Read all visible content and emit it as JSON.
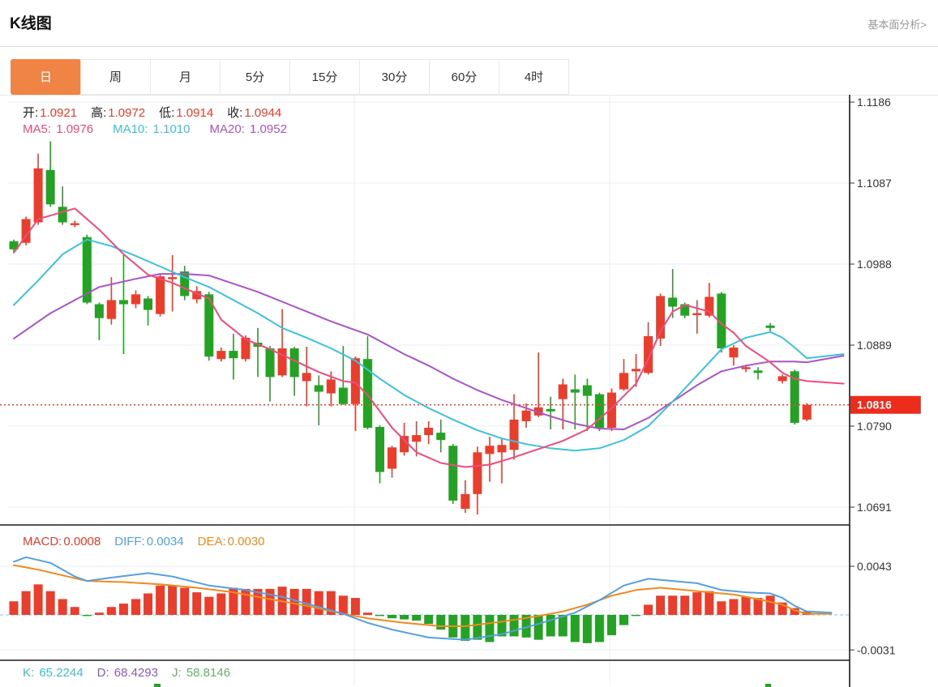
{
  "header": {
    "title": "K线图",
    "link_label": "基本面分析>"
  },
  "tabs": {
    "items": [
      {
        "name": "tab-day",
        "label": "日",
        "active": true
      },
      {
        "name": "tab-week",
        "label": "周",
        "active": false
      },
      {
        "name": "tab-month",
        "label": "月",
        "active": false
      },
      {
        "name": "tab-5min",
        "label": "5分",
        "active": false
      },
      {
        "name": "tab-15min",
        "label": "15分",
        "active": false
      },
      {
        "name": "tab-30min",
        "label": "30分",
        "active": false
      },
      {
        "name": "tab-60min",
        "label": "60分",
        "active": false
      },
      {
        "name": "tab-4hour",
        "label": "4时",
        "active": false
      }
    ]
  },
  "colors": {
    "up": "#ea3d2c",
    "down": "#23a223",
    "ma5": "#f04a7e",
    "ma10": "#3bc2dd",
    "ma20": "#ab53c5",
    "diff": "#55a0e0",
    "dea": "#f08a1d",
    "price_line": "#f04438",
    "price_tag_bg": "#ee2c1c",
    "grid": "#e9ecf4",
    "axis": "#1b1b1b",
    "zero_dash": "#a9cde9",
    "tab_active": "#ef8444",
    "label_dark": "#222",
    "axis_text": "#333"
  },
  "legend_ohlc": [
    {
      "label": "开:",
      "value": "1.0921",
      "label_color": "#222",
      "value_color": "#ea3d2c"
    },
    {
      "label": "高:",
      "value": "1.0972",
      "label_color": "#222",
      "value_color": "#ea3d2c"
    },
    {
      "label": "低:",
      "value": "1.0914",
      "label_color": "#222",
      "value_color": "#ea3d2c"
    },
    {
      "label": "收:",
      "value": "1.0944",
      "label_color": "#222",
      "value_color": "#ea3d2c"
    }
  ],
  "legend_ma": [
    {
      "label": "MA5: ",
      "value": "1.0976",
      "label_color": "#f04a7e",
      "value_color": "#f04a7e"
    },
    {
      "label": "MA10: ",
      "value": "1.1010",
      "label_color": "#3bc2dd",
      "value_color": "#3bc2dd"
    },
    {
      "label": "MA20: ",
      "value": "1.0952",
      "label_color": "#ab53c5",
      "value_color": "#ab53c5"
    }
  ],
  "legend_macd": [
    {
      "label": "MACD:",
      "value": "0.0008",
      "label_color": "#ea3d2c",
      "value_color": "#ea3d2c"
    },
    {
      "label": "DIFF:",
      "value": "0.0034",
      "label_color": "#55a0e0",
      "value_color": "#55a0e0"
    },
    {
      "label": "DEA:",
      "value": "0.0030",
      "label_color": "#f08a1d",
      "value_color": "#f08a1d"
    }
  ],
  "legend_kdj": [
    {
      "label": "K: ",
      "value": "65.2244",
      "label_color": "#3ac0d0",
      "value_color": "#3ac0d0"
    },
    {
      "label": "D: ",
      "value": "68.4293",
      "label_color": "#8a5ac0",
      "value_color": "#8a5ac0"
    },
    {
      "label": "J: ",
      "value": "58.8146",
      "label_color": "#62b462",
      "value_color": "#62b462"
    }
  ],
  "price_tag": "1.0816",
  "chart_data": {
    "type": "candlestick+macd",
    "title": "K线图 (daily candles with MA5/MA10/MA20 and MACD)",
    "legend_position": "top-left",
    "grid": true,
    "price_axis": {
      "labels": [
        1.1186,
        1.1087,
        1.0988,
        1.0889,
        1.079,
        1.0691
      ],
      "current_price": 1.0816
    },
    "macd_axis": {
      "labels": [
        0.0043,
        -0.0031
      ]
    },
    "candles_ohlc": [
      [
        1.1016,
        1.1018,
        1.1003,
        1.1006
      ],
      [
        1.1014,
        1.1046,
        1.1011,
        1.1043
      ],
      [
        1.1039,
        1.1123,
        1.1036,
        1.1105
      ],
      [
        1.1103,
        1.1138,
        1.1058,
        1.1061
      ],
      [
        1.1058,
        1.1083,
        1.1036,
        1.1039
      ],
      [
        1.1036,
        1.1041,
        1.1033,
        1.1038
      ],
      [
        1.1021,
        1.1024,
        1.0939,
        1.0941
      ],
      [
        1.0939,
        1.0941,
        1.0895,
        1.0922
      ],
      [
        1.0921,
        1.0972,
        1.0914,
        1.0944
      ],
      [
        1.0944,
        1.0999,
        1.0878,
        1.0939
      ],
      [
        1.0939,
        1.0956,
        1.0934,
        1.0951
      ],
      [
        1.0946,
        1.0949,
        1.0913,
        1.0932
      ],
      [
        1.0927,
        1.0976,
        1.0924,
        1.0973
      ],
      [
        1.097,
        1.0999,
        1.093,
        1.0972
      ],
      [
        1.0979,
        1.0986,
        1.0944,
        1.0949
      ],
      [
        1.0945,
        1.0961,
        1.094,
        1.0955
      ],
      [
        1.0951,
        1.0954,
        1.087,
        1.0875
      ],
      [
        1.0872,
        1.0886,
        1.0869,
        1.0882
      ],
      [
        1.0882,
        1.0903,
        1.0847,
        1.0873
      ],
      [
        1.0872,
        1.0901,
        1.0869,
        1.0898
      ],
      [
        1.0892,
        1.091,
        1.085,
        1.0887
      ],
      [
        1.0885,
        1.0888,
        1.082,
        1.085
      ],
      [
        1.0852,
        1.0933,
        1.085,
        1.0885
      ],
      [
        1.0885,
        1.0887,
        1.0827,
        1.085
      ],
      [
        1.0845,
        1.0887,
        1.0814,
        1.0855
      ],
      [
        1.084,
        1.0852,
        1.0791,
        1.0832
      ],
      [
        1.083,
        1.0857,
        1.0814,
        1.0847
      ],
      [
        1.0837,
        1.0888,
        1.0816,
        1.0817
      ],
      [
        1.0817,
        1.0875,
        1.0784,
        1.0873
      ],
      [
        1.0872,
        1.09,
        1.0786,
        1.0788
      ],
      [
        1.0789,
        1.0791,
        1.072,
        1.0734
      ],
      [
        1.0738,
        1.0766,
        1.0727,
        1.0764
      ],
      [
        1.0758,
        1.0794,
        1.0754,
        1.0778
      ],
      [
        1.0771,
        1.0796,
        1.0753,
        1.0779
      ],
      [
        1.0779,
        1.0796,
        1.0768,
        1.0788
      ],
      [
        1.0782,
        1.0798,
        1.0758,
        1.0773
      ],
      [
        1.0766,
        1.0768,
        1.0695,
        1.0699
      ],
      [
        1.0689,
        1.0724,
        1.0684,
        1.0707
      ],
      [
        1.0707,
        1.0765,
        1.0682,
        1.0758
      ],
      [
        1.0756,
        1.0777,
        1.0722,
        1.0766
      ],
      [
        1.0758,
        1.0776,
        1.072,
        1.0767
      ],
      [
        1.0761,
        1.0829,
        1.0749,
        1.0798
      ],
      [
        1.0796,
        1.0818,
        1.0788,
        1.0809
      ],
      [
        1.0803,
        1.088,
        1.0801,
        1.0813
      ],
      [
        1.0811,
        1.0826,
        1.0786,
        1.0808
      ],
      [
        1.0823,
        1.0848,
        1.0786,
        1.0841
      ],
      [
        1.0835,
        1.0853,
        1.0786,
        1.0831
      ],
      [
        1.084,
        1.0848,
        1.0784,
        1.0827
      ],
      [
        1.0829,
        1.0831,
        1.0784,
        1.0788
      ],
      [
        1.0788,
        1.0836,
        1.0784,
        1.0831
      ],
      [
        1.0835,
        1.0872,
        1.0833,
        1.0855
      ],
      [
        1.0857,
        1.0878,
        1.0838,
        1.086
      ],
      [
        1.0855,
        1.0917,
        1.0853,
        1.09
      ],
      [
        1.0897,
        1.0952,
        1.0888,
        1.0949
      ],
      [
        1.0947,
        1.0982,
        1.0922,
        1.0936
      ],
      [
        1.0939,
        1.0941,
        1.0922,
        1.0925
      ],
      [
        1.0926,
        1.0944,
        1.0903,
        1.0928
      ],
      [
        1.0925,
        1.0965,
        1.0923,
        1.0948
      ],
      [
        1.0952,
        1.0954,
        1.088,
        1.0885
      ],
      [
        1.0874,
        1.0889,
        1.0864,
        1.0886
      ],
      [
        1.086,
        1.0865,
        1.0856,
        1.0862
      ],
      [
        1.0858,
        1.0862,
        1.0847,
        1.0855
      ],
      [
        1.0913,
        1.0916,
        1.0906,
        1.091
      ],
      [
        1.0845,
        1.0853,
        1.0842,
        1.0851
      ],
      [
        1.0857,
        1.0859,
        1.0792,
        1.0794
      ],
      [
        1.0798,
        1.0818,
        1.0796,
        1.0816
      ]
    ],
    "ma5_points": [
      [
        0,
        1.1002
      ],
      [
        2,
        1.1043
      ],
      [
        5,
        1.1056
      ],
      [
        7,
        1.103
      ],
      [
        9,
        1.1
      ],
      [
        11,
        1.0975
      ],
      [
        13,
        1.0965
      ],
      [
        15,
        1.0952
      ],
      [
        16,
        1.0946
      ],
      [
        17,
        1.092
      ],
      [
        19,
        1.0896
      ],
      [
        21,
        1.0884
      ],
      [
        23,
        1.087
      ],
      [
        25,
        1.0856
      ],
      [
        27,
        1.0845
      ],
      [
        28,
        1.0843
      ],
      [
        29,
        1.0828
      ],
      [
        31,
        1.0788
      ],
      [
        33,
        1.0758
      ],
      [
        35,
        1.0745
      ],
      [
        37,
        1.074
      ],
      [
        39,
        1.0743
      ],
      [
        41,
        1.0752
      ],
      [
        43,
        1.0762
      ],
      [
        45,
        1.0772
      ],
      [
        47,
        1.0786
      ],
      [
        49,
        1.0812
      ],
      [
        51,
        1.0842
      ],
      [
        52,
        1.0872
      ],
      [
        53,
        1.0906
      ],
      [
        54,
        1.093
      ],
      [
        55,
        1.0938
      ],
      [
        56,
        1.0934
      ],
      [
        57,
        1.093
      ],
      [
        58,
        1.0915
      ],
      [
        59,
        1.0904
      ],
      [
        60,
        1.0888
      ],
      [
        61,
        1.0878
      ],
      [
        62,
        1.0868
      ],
      [
        63,
        1.0855
      ],
      [
        64,
        1.0848
      ],
      [
        65,
        1.0845
      ],
      [
        68,
        1.0842
      ]
    ],
    "ma10_points": [
      [
        0,
        1.0938
      ],
      [
        2,
        1.0968
      ],
      [
        4,
        1.1
      ],
      [
        6,
        1.1018
      ],
      [
        8,
        1.101
      ],
      [
        10,
        1.0998
      ],
      [
        12,
        1.0985
      ],
      [
        14,
        1.0972
      ],
      [
        16,
        1.096
      ],
      [
        18,
        1.0944
      ],
      [
        20,
        1.0928
      ],
      [
        22,
        1.091
      ],
      [
        24,
        1.0898
      ],
      [
        26,
        1.0885
      ],
      [
        28,
        1.087
      ],
      [
        30,
        1.0848
      ],
      [
        32,
        1.0828
      ],
      [
        34,
        1.0812
      ],
      [
        36,
        1.0798
      ],
      [
        38,
        1.0785
      ],
      [
        40,
        1.0775
      ],
      [
        42,
        1.0768
      ],
      [
        44,
        1.0763
      ],
      [
        46,
        1.076
      ],
      [
        48,
        1.0763
      ],
      [
        50,
        1.0773
      ],
      [
        52,
        1.079
      ],
      [
        54,
        1.082
      ],
      [
        56,
        1.0852
      ],
      [
        58,
        1.0884
      ],
      [
        60,
        1.0898
      ],
      [
        62,
        1.0905
      ],
      [
        63,
        1.0898
      ],
      [
        64,
        1.0886
      ],
      [
        65,
        1.0873
      ],
      [
        68,
        1.0878
      ]
    ],
    "ma20_points": [
      [
        0,
        1.0897
      ],
      [
        3,
        1.0928
      ],
      [
        7,
        1.096
      ],
      [
        10,
        1.097
      ],
      [
        12,
        1.0976
      ],
      [
        14,
        1.0976
      ],
      [
        16,
        1.0974
      ],
      [
        18,
        1.0964
      ],
      [
        20,
        1.0954
      ],
      [
        23,
        1.0936
      ],
      [
        26,
        1.0918
      ],
      [
        29,
        1.0902
      ],
      [
        32,
        1.0878
      ],
      [
        34,
        1.0864
      ],
      [
        36,
        1.0848
      ],
      [
        38,
        1.0834
      ],
      [
        40,
        1.0822
      ],
      [
        42,
        1.0812
      ],
      [
        44,
        1.0802
      ],
      [
        46,
        1.0793
      ],
      [
        48,
        1.0787
      ],
      [
        50,
        1.0786
      ],
      [
        52,
        1.08
      ],
      [
        54,
        1.082
      ],
      [
        56,
        1.084
      ],
      [
        58,
        1.0857
      ],
      [
        60,
        1.0864
      ],
      [
        62,
        1.0869
      ],
      [
        64,
        1.0869
      ],
      [
        65,
        1.0868
      ],
      [
        68,
        1.0876
      ]
    ],
    "macd_hist": [
      0.0012,
      0.0021,
      0.0027,
      0.0021,
      0.0014,
      0.0007,
      -0.0001,
      0.0002,
      0.0007,
      0.001,
      0.0014,
      0.0019,
      0.0026,
      0.0026,
      0.0024,
      0.002,
      0.0016,
      0.0019,
      0.0024,
      0.0023,
      0.0023,
      0.0023,
      0.0025,
      0.0023,
      0.0023,
      0.0021,
      0.0021,
      0.0017,
      0.0015,
      0.0002,
      -0.0001,
      -0.0003,
      -0.0004,
      -0.0005,
      -0.0008,
      -0.0013,
      -0.002,
      -0.0023,
      -0.0022,
      -0.0024,
      -0.0019,
      -0.0019,
      -0.002,
      -0.0022,
      -0.0019,
      -0.0019,
      -0.0024,
      -0.0025,
      -0.0024,
      -0.0018,
      -0.0009,
      -0.0001,
      0.0009,
      0.0017,
      0.0017,
      0.0017,
      0.002,
      0.0021,
      0.0012,
      0.0014,
      0.0016,
      0.0015,
      0.0017,
      0.0011,
      0.0006,
      0.0003
    ],
    "diff_points": [
      [
        0,
        0.0047
      ],
      [
        1,
        0.0051
      ],
      [
        3,
        0.0046
      ],
      [
        5,
        0.0034
      ],
      [
        6,
        0.003
      ],
      [
        8,
        0.0033
      ],
      [
        11,
        0.0037
      ],
      [
        13,
        0.0034
      ],
      [
        16,
        0.0026
      ],
      [
        19,
        0.0022
      ],
      [
        22,
        0.0016
      ],
      [
        25,
        0.0007
      ],
      [
        27,
        0.0001
      ],
      [
        29,
        -0.0007
      ],
      [
        31,
        -0.0013
      ],
      [
        34,
        -0.002
      ],
      [
        37,
        -0.0022
      ],
      [
        40,
        -0.0017
      ],
      [
        43,
        -0.0008
      ],
      [
        46,
        0.0002
      ],
      [
        48,
        0.0013
      ],
      [
        50,
        0.0026
      ],
      [
        52,
        0.0032
      ],
      [
        54,
        0.003
      ],
      [
        56,
        0.0028
      ],
      [
        58,
        0.0022
      ],
      [
        60,
        0.002
      ],
      [
        62,
        0.0019
      ],
      [
        63,
        0.0015
      ],
      [
        64,
        0.0008
      ],
      [
        65,
        0.0003
      ],
      [
        67,
        0.0002
      ]
    ],
    "dea_points": [
      [
        0,
        0.0044
      ],
      [
        2,
        0.004
      ],
      [
        4,
        0.0035
      ],
      [
        6,
        0.003
      ],
      [
        9,
        0.0029
      ],
      [
        12,
        0.0027
      ],
      [
        15,
        0.0024
      ],
      [
        18,
        0.002
      ],
      [
        21,
        0.0014
      ],
      [
        24,
        0.0008
      ],
      [
        27,
        0.0001
      ],
      [
        29,
        -0.0003
      ],
      [
        32,
        -0.0007
      ],
      [
        35,
        -0.001
      ],
      [
        37,
        -0.001
      ],
      [
        40,
        -0.0006
      ],
      [
        43,
        -0.0001
      ],
      [
        45,
        0.0003
      ],
      [
        47,
        0.0009
      ],
      [
        49,
        0.0017
      ],
      [
        51,
        0.0022
      ],
      [
        53,
        0.0024
      ],
      [
        55,
        0.0022
      ],
      [
        57,
        0.002
      ],
      [
        59,
        0.0018
      ],
      [
        61,
        0.0014
      ],
      [
        63,
        0.0009
      ],
      [
        64,
        0.0004
      ],
      [
        65,
        0.0001
      ],
      [
        67,
        0.0001
      ]
    ]
  }
}
